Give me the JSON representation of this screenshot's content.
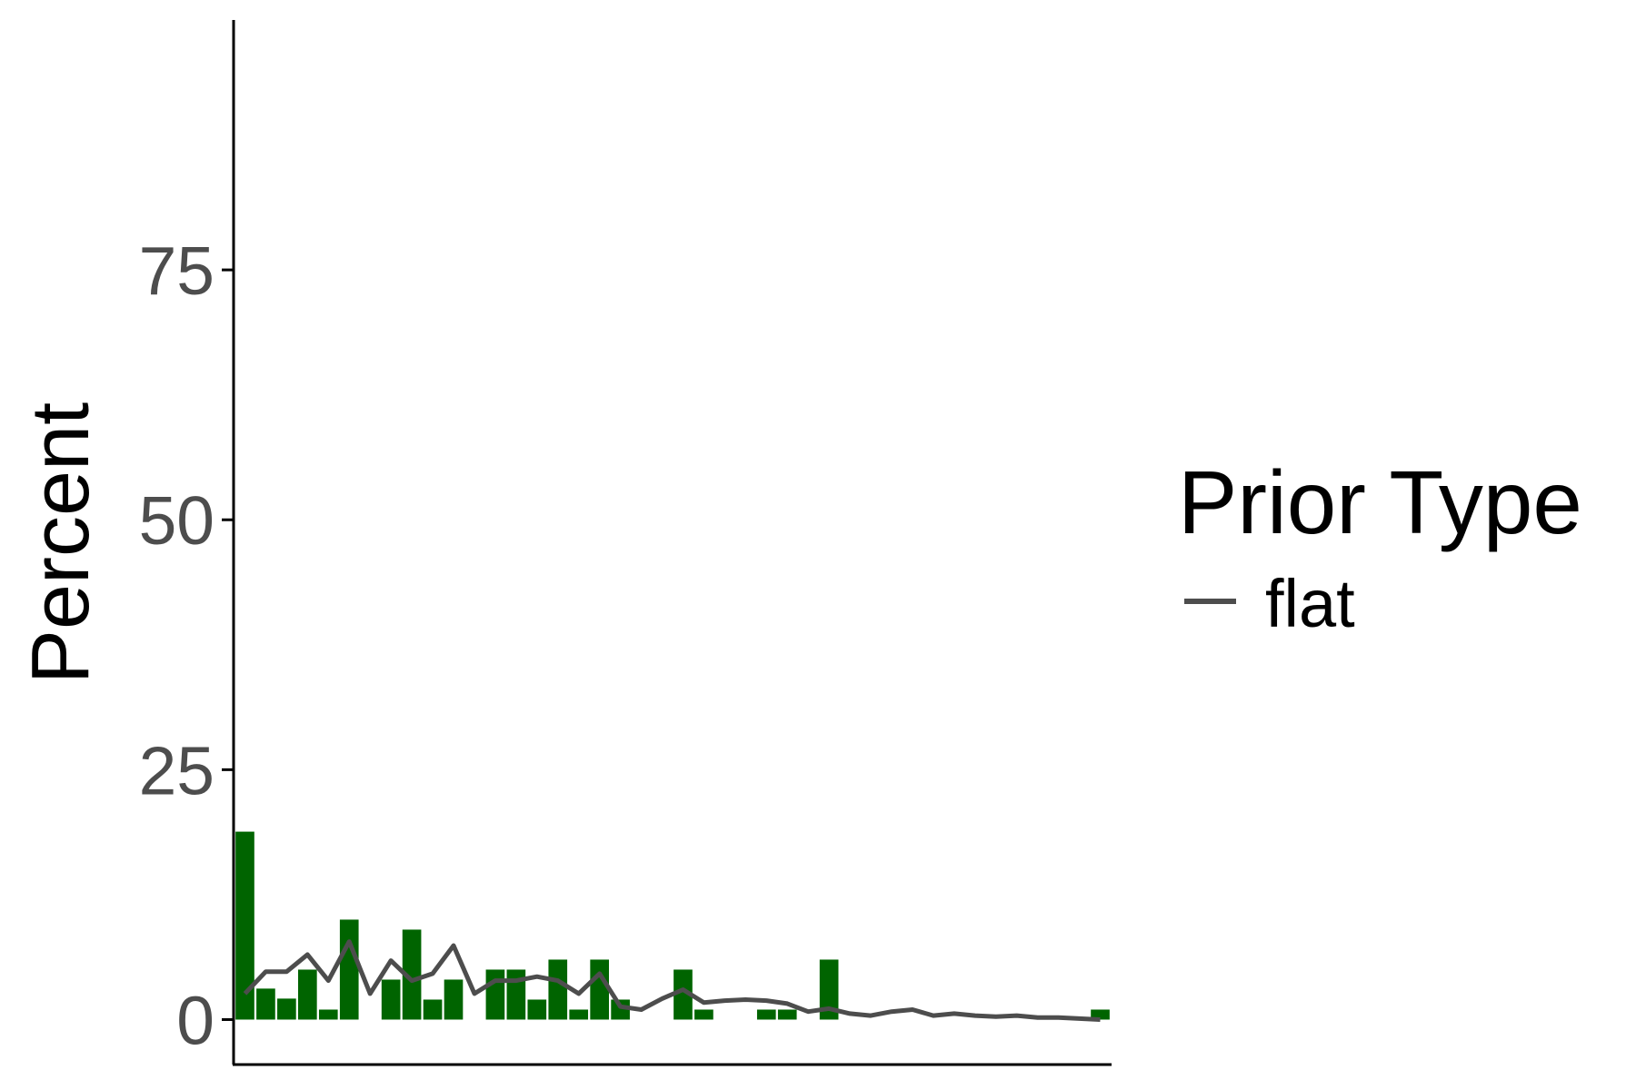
{
  "chart_data": {
    "type": "bar",
    "ylabel": "Percent",
    "xlabel": "",
    "ylim": [
      -4.5,
      100
    ],
    "yticks": [
      0,
      25,
      50,
      75
    ],
    "x_count": 42,
    "bar_values": [
      18.8,
      3.1,
      2.1,
      5.0,
      1.0,
      10.0,
      0,
      4.0,
      9.0,
      2.0,
      4.0,
      0,
      5.0,
      5.0,
      2.0,
      6.0,
      1.0,
      6.0,
      2.0,
      0,
      0,
      5.0,
      1.0,
      0,
      0,
      1.0,
      1.0,
      0,
      6.0,
      0,
      0,
      0,
      0,
      0,
      0,
      0,
      0,
      0,
      0,
      0,
      0,
      1.0
    ],
    "bar_color": "#006400",
    "series": [
      {
        "name": "flat",
        "color": "#4d4d4d",
        "values": [
          2.6,
          4.8,
          4.8,
          6.5,
          3.9,
          7.8,
          2.6,
          5.9,
          3.9,
          4.6,
          7.4,
          2.6,
          3.9,
          3.9,
          4.3,
          3.9,
          2.6,
          4.6,
          1.3,
          1.0,
          2.1,
          3.0,
          1.7,
          1.9,
          2.0,
          1.9,
          1.6,
          0.8,
          1.1,
          0.6,
          0.4,
          0.8,
          1.0,
          0.4,
          0.6,
          0.4,
          0.3,
          0.4,
          0.2,
          0.2,
          0.1,
          0.0
        ]
      }
    ],
    "grid": false,
    "legend": {
      "title": "Prior Type",
      "placement": "right"
    }
  }
}
